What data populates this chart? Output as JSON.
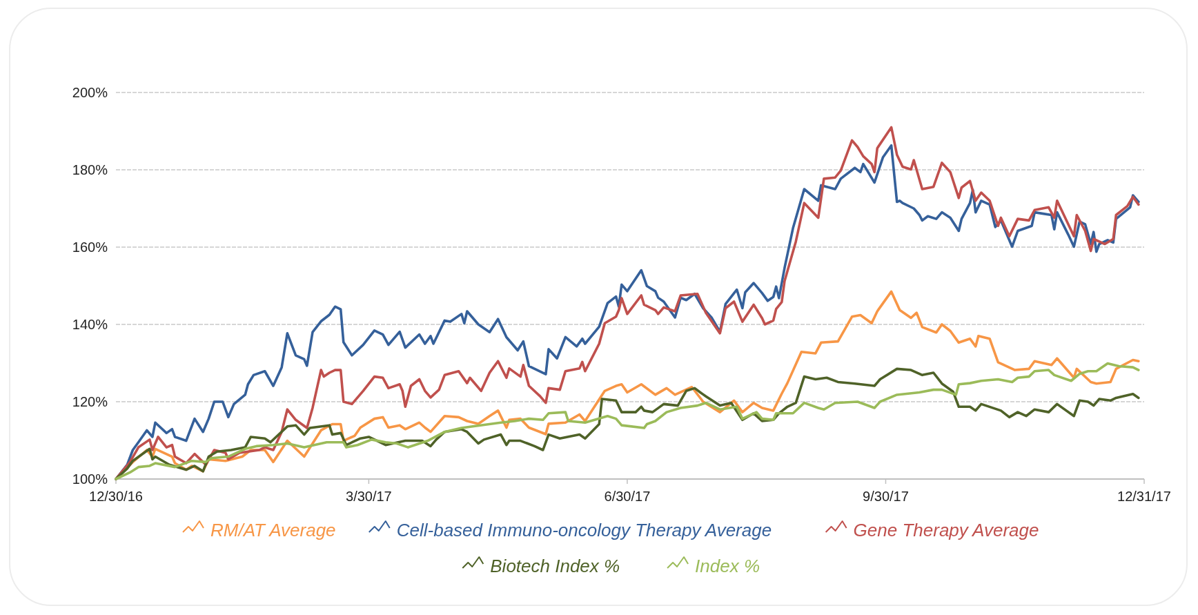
{
  "chart_data": {
    "type": "line",
    "legend": "bottom",
    "grid": "y",
    "xlim": [
      "2016-12-30",
      "2017-12-31"
    ],
    "xticks": [
      {
        "value": "2016-12-30",
        "label": "12/30/16"
      },
      {
        "value": "2017-03-30",
        "label": "3/30/17"
      },
      {
        "value": "2017-06-30",
        "label": "6/30/17"
      },
      {
        "value": "2017-09-30",
        "label": "9/30/17"
      },
      {
        "value": "2017-12-31",
        "label": "12/31/17"
      }
    ],
    "ylim": [
      100,
      200
    ],
    "yticks": [
      {
        "value": 100,
        "label": "100%"
      },
      {
        "value": 120,
        "label": "120%"
      },
      {
        "value": 140,
        "label": "140%"
      },
      {
        "value": 160,
        "label": "160%"
      },
      {
        "value": 180,
        "label": "180%"
      },
      {
        "value": 200,
        "label": "200%"
      }
    ],
    "series": [
      {
        "name": "RM/AT Average",
        "color": "#f79646",
        "x": [
          "2016-12-30",
          "2017-01-05",
          "2017-01-10",
          "2017-01-12",
          "2017-01-13",
          "2017-01-19",
          "2017-01-20",
          "2017-01-24",
          "2017-01-26",
          "2017-01-30",
          "2017-02-01",
          "2017-02-07",
          "2017-02-13",
          "2017-02-16",
          "2017-02-21",
          "2017-02-24",
          "2017-03-01",
          "2017-03-07",
          "2017-03-13",
          "2017-03-17",
          "2017-03-20",
          "2017-03-21",
          "2017-03-25",
          "2017-03-27",
          "2017-04-01",
          "2017-04-04",
          "2017-04-06",
          "2017-04-10",
          "2017-04-12",
          "2017-04-17",
          "2017-04-19",
          "2017-04-21",
          "2017-04-26",
          "2017-05-01",
          "2017-05-04",
          "2017-05-08",
          "2017-05-12",
          "2017-05-15",
          "2017-05-18",
          "2017-05-19",
          "2017-05-23",
          "2017-05-26",
          "2017-06-01",
          "2017-06-02",
          "2017-06-08",
          "2017-06-13",
          "2017-06-15",
          "2017-06-22",
          "2017-06-26",
          "2017-06-28",
          "2017-06-30",
          "2017-07-05",
          "2017-07-10",
          "2017-07-14",
          "2017-07-17",
          "2017-07-23",
          "2017-07-27",
          "2017-08-02",
          "2017-08-07",
          "2017-08-10",
          "2017-08-14",
          "2017-08-17",
          "2017-08-21",
          "2017-08-24",
          "2017-08-26",
          "2017-08-31",
          "2017-09-05",
          "2017-09-07",
          "2017-09-13",
          "2017-09-18",
          "2017-09-21",
          "2017-09-25",
          "2017-09-27",
          "2017-10-02",
          "2017-10-05",
          "2017-10-09",
          "2017-10-11",
          "2017-10-13",
          "2017-10-18",
          "2017-10-20",
          "2017-10-23",
          "2017-10-26",
          "2017-10-30",
          "2017-11-01",
          "2017-11-02",
          "2017-11-06",
          "2017-11-09",
          "2017-11-15",
          "2017-11-20",
          "2017-11-22",
          "2017-11-28",
          "2017-11-30",
          "2017-12-06",
          "2017-12-07",
          "2017-12-12",
          "2017-12-14",
          "2017-12-19",
          "2017-12-21",
          "2017-12-27",
          "2017-12-29"
        ],
        "values": [
          100,
          104.4,
          107.5,
          105.8,
          107.8,
          105.8,
          104.1,
          102.4,
          103.4,
          102,
          105.1,
          104.7,
          105.8,
          107.5,
          107.5,
          104.4,
          109.9,
          105.8,
          112.6,
          114.2,
          114.2,
          109.9,
          111.2,
          113.3,
          115.6,
          116,
          113.3,
          113.9,
          112.9,
          114.6,
          113.3,
          112.2,
          116.3,
          116,
          115,
          114.3,
          116.3,
          117.7,
          113.3,
          115.3,
          115.6,
          113.3,
          111.6,
          114.3,
          114.6,
          116.7,
          115,
          122.8,
          124.1,
          124.5,
          122.4,
          124.5,
          121.8,
          123.5,
          121.8,
          123.8,
          120,
          117.3,
          120.3,
          117.3,
          119.7,
          118.4,
          117.7,
          122.1,
          124.8,
          132.9,
          132.5,
          135.3,
          135.6,
          142,
          142.4,
          140.3,
          143.4,
          148.5,
          143.7,
          141.7,
          143,
          139.3,
          137.9,
          140,
          138.3,
          135.3,
          136.3,
          134.3,
          137,
          136.3,
          130.2,
          128.2,
          128.5,
          130.5,
          129.5,
          131.2,
          126.2,
          128.5,
          125.1,
          124.7,
          125.1,
          128.5,
          130.8,
          130.5
        ]
      },
      {
        "name": "Cell-based Immuno-oncology Therapy Average",
        "color": "#35609a",
        "x": [
          "2016-12-30",
          "2017-01-03",
          "2017-01-05",
          "2017-01-07",
          "2017-01-10",
          "2017-01-12",
          "2017-01-13",
          "2017-01-17",
          "2017-01-19",
          "2017-01-20",
          "2017-01-24",
          "2017-01-27",
          "2017-01-30",
          "2017-02-01",
          "2017-02-03",
          "2017-02-06",
          "2017-02-08",
          "2017-02-10",
          "2017-02-14",
          "2017-02-15",
          "2017-02-17",
          "2017-02-21",
          "2017-02-24",
          "2017-02-27",
          "2017-03-01",
          "2017-03-04",
          "2017-03-07",
          "2017-03-08",
          "2017-03-10",
          "2017-03-13",
          "2017-03-16",
          "2017-03-18",
          "2017-03-20",
          "2017-03-21",
          "2017-03-24",
          "2017-03-28",
          "2017-04-01",
          "2017-04-04",
          "2017-04-06",
          "2017-04-10",
          "2017-04-12",
          "2017-04-17",
          "2017-04-19",
          "2017-04-21",
          "2017-04-22",
          "2017-04-26",
          "2017-04-28",
          "2017-05-02",
          "2017-05-03",
          "2017-05-04",
          "2017-05-08",
          "2017-05-12",
          "2017-05-15",
          "2017-05-18",
          "2017-05-22",
          "2017-05-24",
          "2017-05-26",
          "2017-06-01",
          "2017-06-02",
          "2017-06-05",
          "2017-06-08",
          "2017-06-12",
          "2017-06-14",
          "2017-06-15",
          "2017-06-20",
          "2017-06-23",
          "2017-06-26",
          "2017-06-27",
          "2017-06-28",
          "2017-06-30",
          "2017-07-05",
          "2017-07-07",
          "2017-07-10",
          "2017-07-11",
          "2017-07-13",
          "2017-07-17",
          "2017-07-19",
          "2017-07-21",
          "2017-07-24",
          "2017-07-27",
          "2017-07-30",
          "2017-08-02",
          "2017-08-04",
          "2017-08-08",
          "2017-08-10",
          "2017-08-11",
          "2017-08-14",
          "2017-08-17",
          "2017-08-19",
          "2017-08-21",
          "2017-08-22",
          "2017-08-23",
          "2017-08-25",
          "2017-08-28",
          "2017-09-01",
          "2017-09-06",
          "2017-09-07",
          "2017-09-12",
          "2017-09-14",
          "2017-09-19",
          "2017-09-21",
          "2017-09-22",
          "2017-09-26",
          "2017-09-29",
          "2017-10-02",
          "2017-10-04",
          "2017-10-05",
          "2017-10-06",
          "2017-10-10",
          "2017-10-12",
          "2017-10-13",
          "2017-10-15",
          "2017-10-18",
          "2017-10-20",
          "2017-10-23",
          "2017-10-26",
          "2017-10-27",
          "2017-10-30",
          "2017-10-31",
          "2017-11-01",
          "2017-11-03",
          "2017-11-06",
          "2017-11-08",
          "2017-11-10",
          "2017-11-14",
          "2017-11-16",
          "2017-11-21",
          "2017-11-22",
          "2017-11-28",
          "2017-11-29",
          "2017-11-30",
          "2017-12-04",
          "2017-12-06",
          "2017-12-08",
          "2017-12-10",
          "2017-12-12",
          "2017-12-13",
          "2017-12-14",
          "2017-12-15",
          "2017-12-18",
          "2017-12-20",
          "2017-12-21",
          "2017-12-26",
          "2017-12-27",
          "2017-12-29"
        ],
        "values": [
          100,
          103.7,
          107.5,
          109.5,
          112.6,
          110.9,
          114.6,
          111.9,
          112.9,
          110.9,
          109.9,
          115.6,
          112.2,
          115.6,
          120,
          120,
          116,
          119.4,
          121.8,
          124.5,
          126.9,
          127.9,
          124.1,
          128.9,
          137.7,
          132,
          131,
          129.3,
          138,
          140.8,
          142.5,
          144.6,
          143.9,
          135.4,
          132,
          134.7,
          138.4,
          137.4,
          134.7,
          138.1,
          134,
          137.4,
          135,
          137,
          135,
          141,
          140.7,
          142.7,
          140.3,
          143.4,
          140,
          138,
          141.4,
          136.7,
          133.3,
          135.6,
          129.2,
          127.1,
          133.6,
          131.2,
          136.7,
          134.3,
          136.3,
          135,
          139.4,
          145.5,
          147.2,
          144.6,
          150.3,
          148.6,
          154,
          149.9,
          148.6,
          146.9,
          145.9,
          141.8,
          146.9,
          146.3,
          147.9,
          144.2,
          141.8,
          138.1,
          145.3,
          149,
          144.2,
          148.3,
          150.7,
          148.1,
          146.1,
          147.1,
          149.8,
          146.8,
          154.6,
          164.9,
          175,
          172,
          176,
          175,
          177.7,
          180.5,
          179.4,
          181.5,
          176.7,
          183.2,
          186.3,
          171.7,
          172,
          171.4,
          170,
          168.3,
          166.9,
          168,
          167.3,
          169,
          167.6,
          164.2,
          167.3,
          171.4,
          174.8,
          169,
          172,
          171,
          165.2,
          166.9,
          160.1,
          164.2,
          165.5,
          169,
          168.3,
          164.6,
          169,
          163.2,
          160.1,
          166.6,
          165.9,
          160.8,
          163.9,
          158.8,
          160.8,
          161.8,
          161.2,
          167.3,
          170.3,
          173.4,
          171.7
        ]
      },
      {
        "name": "Gene Therapy Average",
        "color": "#c0504d",
        "x": [
          "2016-12-30",
          "2017-01-04",
          "2017-01-07",
          "2017-01-11",
          "2017-01-12",
          "2017-01-14",
          "2017-01-17",
          "2017-01-19",
          "2017-01-20",
          "2017-01-24",
          "2017-01-27",
          "2017-01-31",
          "2017-02-03",
          "2017-02-07",
          "2017-02-08",
          "2017-02-12",
          "2017-02-19",
          "2017-02-21",
          "2017-02-24",
          "2017-02-27",
          "2017-03-01",
          "2017-03-04",
          "2017-03-08",
          "2017-03-10",
          "2017-03-13",
          "2017-03-14",
          "2017-03-16",
          "2017-03-18",
          "2017-03-20",
          "2017-03-21",
          "2017-03-24",
          "2017-03-28",
          "2017-04-01",
          "2017-04-04",
          "2017-04-06",
          "2017-04-10",
          "2017-04-11",
          "2017-04-12",
          "2017-04-14",
          "2017-04-17",
          "2017-04-19",
          "2017-04-21",
          "2017-04-24",
          "2017-04-26",
          "2017-05-01",
          "2017-05-04",
          "2017-05-05",
          "2017-05-09",
          "2017-05-12",
          "2017-05-15",
          "2017-05-18",
          "2017-05-19",
          "2017-05-23",
          "2017-05-24",
          "2017-05-26",
          "2017-05-30",
          "2017-06-01",
          "2017-06-02",
          "2017-06-06",
          "2017-06-08",
          "2017-06-13",
          "2017-06-14",
          "2017-06-15",
          "2017-06-20",
          "2017-06-22",
          "2017-06-26",
          "2017-06-27",
          "2017-06-28",
          "2017-06-30",
          "2017-07-05",
          "2017-07-06",
          "2017-07-10",
          "2017-07-11",
          "2017-07-13",
          "2017-07-17",
          "2017-07-19",
          "2017-07-25",
          "2017-07-28",
          "2017-08-02",
          "2017-08-04",
          "2017-08-07",
          "2017-08-10",
          "2017-08-14",
          "2017-08-17",
          "2017-08-18",
          "2017-08-21",
          "2017-08-22",
          "2017-08-24",
          "2017-08-25",
          "2017-08-29",
          "2017-09-01",
          "2017-09-06",
          "2017-09-08",
          "2017-09-12",
          "2017-09-14",
          "2017-09-18",
          "2017-09-20",
          "2017-09-22",
          "2017-09-25",
          "2017-09-26",
          "2017-09-27",
          "2017-10-02",
          "2017-10-04",
          "2017-10-06",
          "2017-10-09",
          "2017-10-10",
          "2017-10-13",
          "2017-10-17",
          "2017-10-20",
          "2017-10-23",
          "2017-10-26",
          "2017-10-27",
          "2017-10-30",
          "2017-11-01",
          "2017-11-03",
          "2017-11-06",
          "2017-11-09",
          "2017-11-10",
          "2017-11-13",
          "2017-11-16",
          "2017-11-20",
          "2017-11-22",
          "2017-11-27",
          "2017-11-29",
          "2017-11-30",
          "2017-12-06",
          "2017-12-07",
          "2017-12-10",
          "2017-12-12",
          "2017-12-13",
          "2017-12-17",
          "2017-12-20",
          "2017-12-21",
          "2017-12-25",
          "2017-12-27",
          "2017-12-29"
        ],
        "values": [
          100,
          104.4,
          108.2,
          110.2,
          107.5,
          110.9,
          108.2,
          108.8,
          105.8,
          104.1,
          106.5,
          103.7,
          107.5,
          106.8,
          105.1,
          106.8,
          107.5,
          108.2,
          107.5,
          112.2,
          118,
          115.3,
          113.2,
          118.4,
          128.2,
          126.5,
          127.5,
          128.2,
          128.2,
          120,
          119.4,
          122.8,
          126.5,
          126.2,
          123.5,
          124.5,
          122.8,
          118.7,
          124.1,
          125.8,
          122.8,
          121.1,
          123.1,
          126.9,
          127.9,
          124.8,
          126.2,
          122.8,
          127.5,
          130.5,
          126.2,
          128.6,
          126.5,
          129.5,
          124.1,
          121.4,
          119.7,
          123.5,
          123.1,
          127.9,
          128.6,
          130.3,
          127.9,
          135,
          140.3,
          142,
          143.7,
          146.8,
          142.7,
          147.5,
          145.1,
          143.7,
          142.7,
          144.4,
          143.4,
          147.5,
          147.9,
          143,
          137.7,
          144.2,
          145.9,
          140.7,
          145.1,
          141.6,
          140,
          141,
          144,
          145.8,
          151.2,
          161.4,
          171.4,
          167.6,
          177.7,
          178,
          179.8,
          187.6,
          185.9,
          183.5,
          181.5,
          179.4,
          185.6,
          191,
          183.9,
          180.8,
          180.1,
          182.5,
          175,
          175.6,
          181.8,
          179.4,
          172.7,
          175.4,
          177.1,
          172,
          174.1,
          172,
          165.5,
          167.6,
          162.8,
          167.3,
          166.9,
          169.6,
          170.3,
          167.6,
          172,
          162.8,
          168.3,
          164.2,
          159,
          162.1,
          160.8,
          162.1,
          168.3,
          170.6,
          173,
          171
        ]
      },
      {
        "name": "Biotech Index %",
        "color": "#4f6228",
        "x": [
          "2016-12-30",
          "2017-01-03",
          "2017-01-05",
          "2017-01-11",
          "2017-01-12",
          "2017-01-13",
          "2017-01-18",
          "2017-01-24",
          "2017-01-27",
          "2017-01-30",
          "2017-02-01",
          "2017-02-04",
          "2017-02-09",
          "2017-02-14",
          "2017-02-16",
          "2017-02-21",
          "2017-02-23",
          "2017-03-01",
          "2017-03-04",
          "2017-03-07",
          "2017-03-09",
          "2017-03-16",
          "2017-03-17",
          "2017-03-20",
          "2017-03-22",
          "2017-03-27",
          "2017-03-30",
          "2017-04-05",
          "2017-04-12",
          "2017-04-18",
          "2017-04-21",
          "2017-04-23",
          "2017-04-26",
          "2017-05-02",
          "2017-05-04",
          "2017-05-08",
          "2017-05-10",
          "2017-05-16",
          "2017-05-18",
          "2017-05-19",
          "2017-05-23",
          "2017-05-28",
          "2017-05-31",
          "2017-06-02",
          "2017-06-06",
          "2017-06-13",
          "2017-06-15",
          "2017-06-20",
          "2017-06-21",
          "2017-06-26",
          "2017-06-28",
          "2017-07-03",
          "2017-07-05",
          "2017-07-06",
          "2017-07-09",
          "2017-07-13",
          "2017-07-18",
          "2017-07-21",
          "2017-07-24",
          "2017-07-26",
          "2017-07-28",
          "2017-08-02",
          "2017-08-06",
          "2017-08-10",
          "2017-08-14",
          "2017-08-17",
          "2017-08-21",
          "2017-08-23",
          "2017-08-26",
          "2017-08-29",
          "2017-09-01",
          "2017-09-05",
          "2017-09-09",
          "2017-09-13",
          "2017-09-19",
          "2017-09-26",
          "2017-09-28",
          "2017-10-04",
          "2017-10-09",
          "2017-10-13",
          "2017-10-17",
          "2017-10-20",
          "2017-10-24",
          "2017-10-26",
          "2017-10-30",
          "2017-11-01",
          "2017-11-03",
          "2017-11-10",
          "2017-11-13",
          "2017-11-16",
          "2017-11-19",
          "2017-11-22",
          "2017-11-27",
          "2017-11-30",
          "2017-12-06",
          "2017-12-08",
          "2017-12-11",
          "2017-12-13",
          "2017-12-15",
          "2017-12-19",
          "2017-12-21",
          "2017-12-27",
          "2017-12-29"
        ],
        "values": [
          100,
          102.7,
          104.7,
          107.8,
          105.1,
          105.8,
          103.7,
          102.4,
          103.4,
          102,
          105.8,
          107.1,
          107.5,
          108.2,
          110.9,
          110.5,
          109.5,
          113.6,
          113.9,
          111.5,
          113.2,
          113.9,
          111.5,
          111.9,
          108.8,
          110.5,
          110.9,
          108.8,
          109.9,
          109.9,
          108.5,
          110.2,
          112.2,
          112.9,
          112.2,
          109.2,
          110.2,
          111.5,
          108.8,
          109.9,
          109.9,
          108.5,
          107.5,
          111.5,
          110.5,
          111.5,
          110.5,
          114.2,
          120.7,
          120.3,
          117.3,
          117.3,
          118.7,
          117.7,
          117.3,
          119.4,
          119,
          122.8,
          123.5,
          122.4,
          121.4,
          119,
          119.7,
          115.3,
          117,
          115,
          115.3,
          117,
          118.7,
          119.7,
          126.5,
          125.8,
          126.2,
          125.1,
          124.7,
          124.1,
          125.8,
          128.5,
          128.2,
          126.9,
          127.5,
          124.7,
          122.6,
          118.7,
          118.7,
          117.7,
          119.4,
          117.7,
          116,
          117.3,
          116.3,
          118,
          117.3,
          119.4,
          116.3,
          120.3,
          120,
          119,
          120.7,
          120.3,
          121,
          122,
          121
        ]
      },
      {
        "name": "Index %",
        "color": "#9bbb59",
        "x": [
          "2016-12-30",
          "2017-01-04",
          "2017-01-07",
          "2017-01-11",
          "2017-01-13",
          "2017-01-20",
          "2017-01-26",
          "2017-01-31",
          "2017-02-02",
          "2017-02-08",
          "2017-02-14",
          "2017-02-18",
          "2017-02-24",
          "2017-03-01",
          "2017-03-07",
          "2017-03-15",
          "2017-03-21",
          "2017-03-22",
          "2017-03-26",
          "2017-03-31",
          "2017-04-05",
          "2017-04-09",
          "2017-04-13",
          "2017-04-20",
          "2017-04-26",
          "2017-05-02",
          "2017-05-06",
          "2017-05-16",
          "2017-05-21",
          "2017-05-26",
          "2017-05-31",
          "2017-06-02",
          "2017-06-08",
          "2017-06-09",
          "2017-06-15",
          "2017-06-23",
          "2017-06-26",
          "2017-06-28",
          "2017-07-06",
          "2017-07-07",
          "2017-07-10",
          "2017-07-14",
          "2017-07-19",
          "2017-07-25",
          "2017-07-28",
          "2017-08-02",
          "2017-08-08",
          "2017-08-10",
          "2017-08-15",
          "2017-08-17",
          "2017-08-21",
          "2017-08-22",
          "2017-08-28",
          "2017-09-01",
          "2017-09-06",
          "2017-09-08",
          "2017-09-12",
          "2017-09-20",
          "2017-09-26",
          "2017-09-28",
          "2017-10-04",
          "2017-10-12",
          "2017-10-17",
          "2017-10-20",
          "2017-10-25",
          "2017-10-26",
          "2017-10-30",
          "2017-11-03",
          "2017-11-09",
          "2017-11-14",
          "2017-11-16",
          "2017-11-20",
          "2017-11-22",
          "2017-11-27",
          "2017-11-29",
          "2017-12-05",
          "2017-12-08",
          "2017-12-11",
          "2017-12-14",
          "2017-12-18",
          "2017-12-22",
          "2017-12-27",
          "2017-12-29"
        ],
        "values": [
          100,
          101.7,
          103.1,
          103.4,
          104.1,
          103.1,
          104.7,
          104.4,
          105.4,
          105.8,
          107.8,
          108.5,
          108.8,
          109.2,
          108.2,
          109.5,
          109.5,
          108.2,
          108.8,
          110.2,
          109.5,
          109.2,
          108.2,
          109.9,
          112.2,
          113.2,
          113.6,
          114.6,
          115,
          115.6,
          115.3,
          117,
          117.3,
          115,
          114.6,
          116.3,
          115.6,
          113.9,
          113.2,
          114.2,
          115,
          117.3,
          118.4,
          119,
          119.7,
          118,
          118.7,
          115.6,
          117.3,
          115.6,
          115.3,
          117,
          117,
          119.7,
          118.4,
          118,
          119.7,
          120,
          118.4,
          120,
          121.8,
          122.4,
          123.1,
          123.1,
          121.8,
          124.5,
          124.8,
          125.4,
          125.8,
          125.1,
          126.2,
          126.5,
          127.9,
          128.2,
          126.9,
          125.4,
          127.2,
          127.9,
          127.9,
          129.9,
          129.2,
          128.9,
          128.2
        ]
      }
    ]
  }
}
